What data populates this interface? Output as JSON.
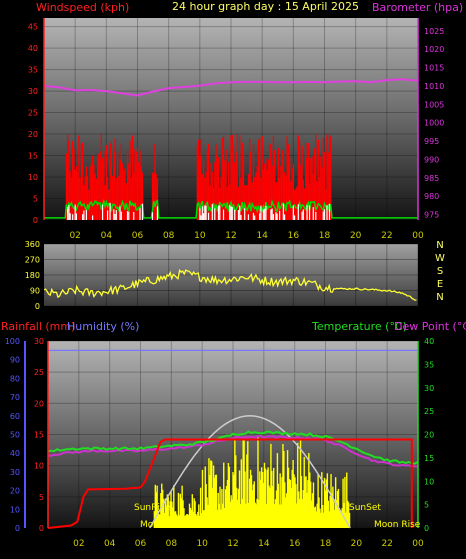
{
  "header": {
    "title": "24 hour graph day : 15 April 2025",
    "left_label": "Windspeed (kph)",
    "right_label": "Barometer (hpa)"
  },
  "colors": {
    "windspeed": "#ff0000",
    "gust_green": "#00dd00",
    "wind_white": "#ffffff",
    "barometer": "#e040e0",
    "direction": "#ffff33",
    "rainfall": "#ff0000",
    "humidity": "#7777ff",
    "temperature": "#22dd22",
    "dewpoint": "#cc33cc",
    "solar": "#ffff00",
    "sun_arc": "#cccccc",
    "panel_top": "#a8a8a8",
    "panel_bottom": "#181818",
    "title": "#ffff66",
    "label_red": "#ff2020",
    "label_magenta": "#dd33dd",
    "label_blue": "#5555ff",
    "label_green": "#22dd22",
    "tick_yellow": "#cccc00"
  },
  "x_tick_labels": [
    "02",
    "04",
    "06",
    "08",
    "10",
    "12",
    "14",
    "16",
    "18",
    "20",
    "22",
    "00"
  ],
  "chart_data": [
    {
      "type": "line",
      "name": "wind_and_pressure",
      "x_range_hours": [
        0,
        24
      ],
      "left_axis": {
        "label": "Windspeed (kph)",
        "ticks": [
          0,
          5,
          10,
          15,
          20,
          25,
          30,
          35,
          40,
          45
        ],
        "ylim": [
          0,
          47
        ]
      },
      "right_axis": {
        "label": "Barometer (hpa)",
        "ticks": [
          975,
          980,
          985,
          990,
          995,
          1000,
          1005,
          1010,
          1015,
          1020,
          1025
        ],
        "ylim": [
          973.5,
          1028.5
        ]
      },
      "barometer": {
        "x": [
          0,
          1,
          2,
          3,
          4,
          5,
          6,
          7,
          8,
          9,
          10,
          11,
          12,
          13,
          14,
          15,
          16,
          17,
          18,
          19,
          20,
          21,
          22,
          23,
          24
        ],
        "y": [
          1010.0,
          1009.6,
          1008.8,
          1008.9,
          1008.6,
          1008.0,
          1007.4,
          1008.5,
          1009.4,
          1009.7,
          1010.1,
          1010.7,
          1011.0,
          1011.1,
          1011.1,
          1011.0,
          1011.0,
          1011.1,
          1011.0,
          1011.2,
          1011.3,
          1011.0,
          1011.6,
          1011.8,
          1011.4
        ]
      },
      "windspeed_bursts": [
        {
          "start": 1.4,
          "end": 6.4,
          "max": 20
        },
        {
          "start": 6.9,
          "end": 7.3,
          "max": 18
        },
        {
          "start": 9.8,
          "end": 18.4,
          "max": 20
        }
      ]
    },
    {
      "type": "line",
      "name": "wind_direction",
      "x_range_hours": [
        0,
        24
      ],
      "left_axis": {
        "ticks": [
          0,
          90,
          180,
          270,
          360
        ],
        "ylim": [
          0,
          360
        ]
      },
      "right_labels": [
        "N",
        "W",
        "S",
        "E",
        "N"
      ],
      "direction": {
        "x": [
          0,
          1,
          2,
          3,
          4,
          5,
          6,
          7,
          8,
          9,
          10,
          11,
          12,
          13,
          14,
          15,
          16,
          17,
          18,
          19,
          20,
          21,
          22,
          23,
          24
        ],
        "y": [
          80,
          65,
          90,
          75,
          85,
          100,
          130,
          150,
          170,
          190,
          170,
          150,
          155,
          170,
          150,
          140,
          150,
          135,
          110,
          100,
          100,
          95,
          90,
          75,
          30
        ]
      }
    },
    {
      "type": "line",
      "name": "rain_humidity_temperature",
      "x_range_hours": [
        0,
        24
      ],
      "left_labels": [
        "Rainfall (mm)",
        "Humidity (%)"
      ],
      "right_labels": [
        "Temperature (°C)",
        "Dew Point (°C)"
      ],
      "rainfall_axis": {
        "ticks": [
          0,
          5,
          10,
          15,
          20,
          25,
          30
        ],
        "ylim": [
          0,
          30
        ]
      },
      "humidity_axis": {
        "ticks": [
          0,
          10,
          20,
          30,
          40,
          50,
          60,
          70,
          80,
          90,
          100
        ],
        "ylim": [
          0,
          100
        ]
      },
      "temperature_axis": {
        "ticks": [
          0,
          5,
          10,
          15,
          20,
          25,
          30,
          35,
          40
        ],
        "ylim": [
          0,
          40
        ]
      },
      "humidity": {
        "x": [
          0,
          24
        ],
        "y": [
          95,
          95
        ]
      },
      "rainfall": {
        "x": [
          0,
          1.5,
          1.9,
          2.3,
          2.6,
          5.0,
          6.0,
          6.3,
          7.3,
          7.6,
          23.6,
          23.6
        ],
        "y": [
          0,
          0.4,
          1,
          5,
          6.2,
          6.3,
          6.5,
          7.5,
          13.8,
          14.2,
          14.2,
          0
        ]
      },
      "temperature": {
        "x": [
          0,
          1,
          2,
          3,
          4,
          5,
          6,
          7,
          8,
          9,
          10,
          11,
          12,
          13,
          14,
          15,
          16,
          17,
          18,
          19,
          20,
          21,
          22,
          23,
          24
        ],
        "y": [
          16.4,
          16.8,
          17.0,
          17.0,
          17.0,
          17.0,
          17.0,
          17.3,
          17.6,
          17.8,
          18.3,
          19.0,
          20.0,
          20.5,
          20.5,
          20.3,
          20.2,
          20.0,
          19.5,
          18.5,
          17.0,
          15.5,
          14.5,
          14.0,
          14.0
        ]
      },
      "dewpoint": {
        "x": [
          0,
          1,
          2,
          3,
          4,
          5,
          6,
          7,
          8,
          9,
          10,
          11,
          12,
          13,
          14,
          15,
          16,
          17,
          18,
          19,
          20,
          21,
          22,
          23,
          24
        ],
        "y": [
          15.5,
          16.0,
          16.3,
          16.5,
          16.5,
          16.5,
          16.5,
          16.8,
          17.0,
          17.3,
          17.8,
          18.5,
          19.2,
          19.5,
          19.5,
          19.4,
          19.3,
          19.2,
          18.8,
          17.5,
          16.0,
          14.5,
          13.8,
          13.3,
          13.3
        ]
      },
      "sun_arc": {
        "sunrise": 6.6,
        "sunset": 19.6,
        "peak": 24
      },
      "solar_bursts": [
        {
          "start": 6.9,
          "end": 10.0,
          "max": 10
        },
        {
          "start": 10.0,
          "end": 12.0,
          "max": 15
        },
        {
          "start": 12.0,
          "end": 17.0,
          "max": 20
        },
        {
          "start": 17.0,
          "end": 19.6,
          "max": 13
        }
      ],
      "annotations": [
        "SunRise",
        "SunSet",
        "Moon Set",
        "Moon Rise"
      ]
    }
  ]
}
